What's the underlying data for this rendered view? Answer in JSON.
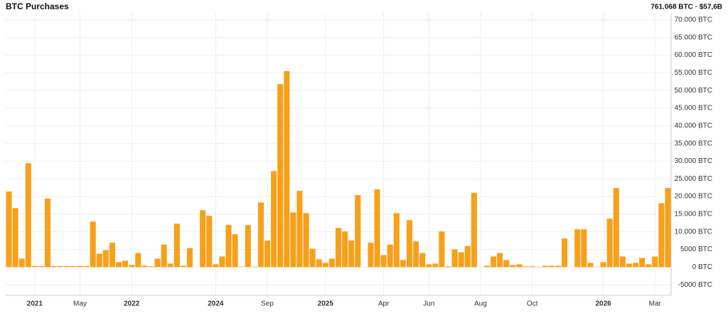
{
  "chart_data": {
    "type": "bar",
    "title": "BTC Purchases",
    "summary": "761.068 BTC · $57,6B",
    "color": "#f7a01a",
    "grid": true,
    "categories": [
      null,
      null,
      null,
      null,
      "2021",
      null,
      null,
      null,
      null,
      null,
      null,
      "May",
      null,
      null,
      null,
      null,
      null,
      null,
      null,
      "2022",
      null,
      null,
      null,
      null,
      null,
      null,
      null,
      null,
      null,
      null,
      null,
      null,
      "2024",
      null,
      null,
      null,
      null,
      null,
      null,
      null,
      "Sep",
      null,
      null,
      null,
      null,
      null,
      null,
      null,
      null,
      "2025",
      null,
      null,
      null,
      null,
      null,
      null,
      null,
      null,
      "Apr",
      null,
      null,
      null,
      null,
      null,
      null,
      "Jun",
      null,
      null,
      null,
      null,
      null,
      null,
      null,
      "Aug",
      null,
      null,
      null,
      null,
      null,
      null,
      null,
      "Oct",
      null,
      null,
      null,
      null,
      null,
      null,
      null,
      null,
      null,
      null,
      "2026",
      null,
      null,
      null,
      null,
      null,
      null,
      null,
      "Mar",
      null,
      null
    ],
    "values": [
      21400,
      16700,
      2400,
      29400,
      300,
      300,
      19400,
      300,
      300,
      300,
      300,
      300,
      300,
      12900,
      3800,
      4800,
      6900,
      1400,
      1800,
      600,
      4000,
      400,
      200,
      2400,
      6400,
      1000,
      12300,
      400,
      5400,
      0,
      16100,
      14500,
      800,
      3000,
      11900,
      9300,
      100,
      11900,
      100,
      18300,
      7500,
      27200,
      51800,
      55500,
      15500,
      21600,
      15300,
      5200,
      2200,
      1200,
      2400,
      11100,
      10100,
      7500,
      20400,
      0,
      6900,
      22000,
      3400,
      6400,
      15300,
      2000,
      13300,
      7300,
      4000,
      800,
      1000,
      10100,
      200,
      5000,
      4200,
      6000,
      21000,
      0,
      400,
      3000,
      4000,
      2000,
      600,
      800,
      200,
      200,
      100,
      400,
      400,
      400,
      8100,
      0,
      10700,
      10700,
      1200,
      100,
      1400,
      13700,
      22400,
      3000,
      1000,
      1200,
      2600,
      800,
      3000,
      18100,
      22400
    ],
    "ylim": [
      -8000,
      72000
    ],
    "yticks": [
      {
        "value": -5000,
        "label": "-5000 BTC"
      },
      {
        "value": 0,
        "label": "0 BTC"
      },
      {
        "value": 5000,
        "label": "5000 BTC"
      },
      {
        "value": 10000,
        "label": "10.000 BTC"
      },
      {
        "value": 15000,
        "label": "15.000 BTC"
      },
      {
        "value": 20000,
        "label": "20.000 BTC"
      },
      {
        "value": 25000,
        "label": "25.000 BTC"
      },
      {
        "value": 30000,
        "label": "30.000 BTC"
      },
      {
        "value": 35000,
        "label": "35.000 BTC"
      },
      {
        "value": 40000,
        "label": "40.000 BTC"
      },
      {
        "value": 45000,
        "label": "45.000 BTC"
      },
      {
        "value": 50000,
        "label": "50.000 BTC"
      },
      {
        "value": 55000,
        "label": "55.000 BTC"
      },
      {
        "value": 60000,
        "label": "60.000 BTC"
      },
      {
        "value": 65000,
        "label": "65.000 BTC"
      },
      {
        "value": 70000,
        "label": "70.000 BTC"
      }
    ]
  }
}
